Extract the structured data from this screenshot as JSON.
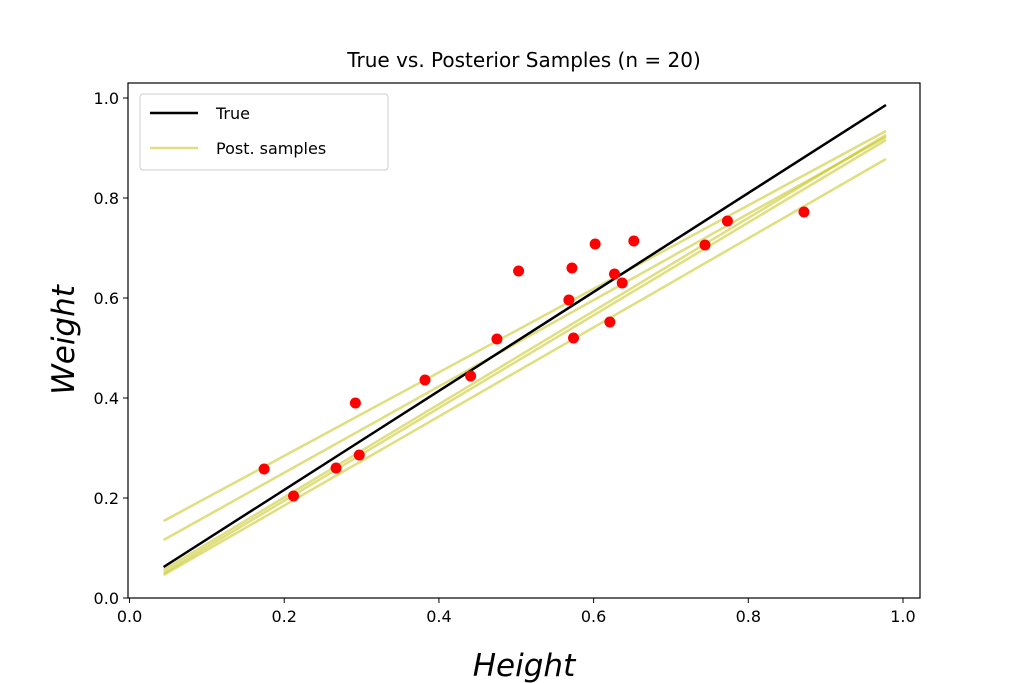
{
  "chart_data": {
    "type": "scatter",
    "title": "True vs. Posterior Samples (n = 20)",
    "xlabel": "Height",
    "ylabel": "Weight",
    "xlim": [
      -0.002,
      1.022
    ],
    "ylim": [
      0.0,
      1.03
    ],
    "xticks": [
      "0.0",
      "0.2",
      "0.4",
      "0.6",
      "0.8",
      "1.0"
    ],
    "yticks": [
      "0.0",
      "0.2",
      "0.4",
      "0.6",
      "0.8",
      "1.0"
    ],
    "grid": false,
    "legend": {
      "position": "top-left",
      "entries": [
        "True",
        "Post. samples"
      ]
    },
    "colors": {
      "points": "#ff0000",
      "true": "#000000",
      "samples": "#bfbf00"
    },
    "points": {
      "x": [
        0.174,
        0.212,
        0.267,
        0.292,
        0.297,
        0.382,
        0.441,
        0.475,
        0.503,
        0.568,
        0.572,
        0.574,
        0.602,
        0.621,
        0.627,
        0.637,
        0.652,
        0.744,
        0.773,
        0.872
      ],
      "y": [
        0.258,
        0.204,
        0.26,
        0.39,
        0.286,
        0.436,
        0.444,
        0.518,
        0.654,
        0.596,
        0.66,
        0.52,
        0.708,
        0.552,
        0.648,
        0.63,
        0.714,
        0.706,
        0.754,
        0.772
      ]
    },
    "true_line": {
      "name": "True",
      "x": [
        0.044,
        0.978
      ],
      "y": [
        0.062,
        0.986
      ]
    },
    "posterior_samples": {
      "name": "Post. samples",
      "lines": [
        {
          "x": [
            0.044,
            0.978
          ],
          "y": [
            0.154,
            0.934
          ]
        },
        {
          "x": [
            0.044,
            0.978
          ],
          "y": [
            0.116,
            0.922
          ]
        },
        {
          "x": [
            0.044,
            0.978
          ],
          "y": [
            0.056,
            0.926
          ]
        },
        {
          "x": [
            0.044,
            0.978
          ],
          "y": [
            0.05,
            0.916
          ]
        },
        {
          "x": [
            0.044,
            0.978
          ],
          "y": [
            0.046,
            0.878
          ]
        }
      ]
    }
  }
}
